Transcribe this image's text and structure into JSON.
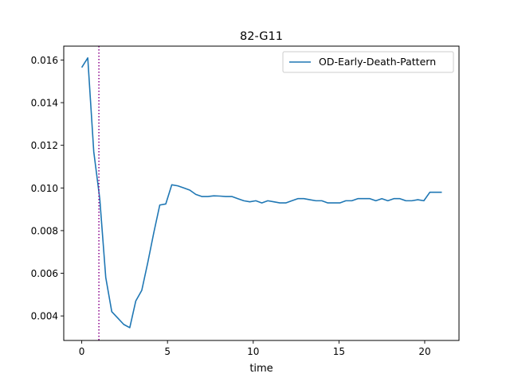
{
  "chart_data": {
    "type": "line",
    "title": "82-G11",
    "xlabel": "time",
    "ylabel": "",
    "xlim": [
      -1.05,
      22.0
    ],
    "ylim": [
      0.00285,
      0.01665
    ],
    "x_ticks": [
      0,
      5,
      10,
      15,
      20
    ],
    "y_ticks": [
      0.004,
      0.006,
      0.008,
      0.01,
      0.012,
      0.014,
      0.016
    ],
    "x_tick_labels": [
      "0",
      "5",
      "10",
      "15",
      "20"
    ],
    "y_tick_labels": [
      "0.004",
      "0.006",
      "0.008",
      "0.010",
      "0.012",
      "0.014",
      "0.016"
    ],
    "grid": false,
    "legend_position": "top-right",
    "vline": {
      "x": 1.0,
      "style": "dotted",
      "color": "#8b008b"
    },
    "series": [
      {
        "name": "OD-Early-Death-Pattern",
        "color": "#1f77b4",
        "x": [
          0.0,
          0.35,
          0.7,
          1.05,
          1.4,
          1.75,
          2.1,
          2.45,
          2.8,
          3.15,
          3.5,
          3.85,
          4.2,
          4.55,
          4.9,
          5.25,
          5.6,
          5.95,
          6.3,
          6.65,
          7.0,
          7.35,
          7.7,
          8.05,
          8.4,
          8.75,
          9.1,
          9.45,
          9.8,
          10.15,
          10.5,
          10.85,
          11.2,
          11.55,
          11.9,
          12.25,
          12.6,
          12.95,
          13.3,
          13.65,
          14.0,
          14.35,
          14.7,
          15.05,
          15.4,
          15.75,
          16.1,
          16.45,
          16.8,
          17.15,
          17.5,
          17.85,
          18.2,
          18.55,
          18.9,
          19.25,
          19.6,
          19.95,
          20.3,
          20.65,
          21.0
        ],
        "values": [
          0.01565,
          0.0161,
          0.0117,
          0.0095,
          0.0058,
          0.0042,
          0.0039,
          0.0036,
          0.00345,
          0.0047,
          0.0052,
          0.0065,
          0.0079,
          0.0092,
          0.00925,
          0.01015,
          0.0101,
          0.01,
          0.0099,
          0.0097,
          0.0096,
          0.0096,
          0.00963,
          0.00962,
          0.0096,
          0.0096,
          0.0095,
          0.0094,
          0.00935,
          0.0094,
          0.0093,
          0.0094,
          0.00935,
          0.0093,
          0.0093,
          0.0094,
          0.0095,
          0.0095,
          0.00945,
          0.0094,
          0.0094,
          0.0093,
          0.0093,
          0.0093,
          0.0094,
          0.0094,
          0.0095,
          0.0095,
          0.0095,
          0.0094,
          0.0095,
          0.0094,
          0.0095,
          0.0095,
          0.0094,
          0.0094,
          0.00945,
          0.0094,
          0.0098,
          0.0098,
          0.0098
        ]
      }
    ]
  }
}
